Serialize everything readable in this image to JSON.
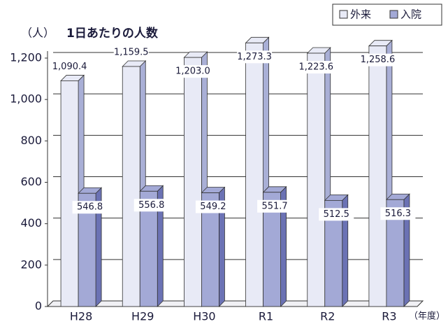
{
  "chart_data": {
    "type": "bar3d",
    "title": "1日あたりの人数",
    "y_axis_label": "（人）",
    "x_axis_label": "（年度）",
    "categories": [
      "H28",
      "H29",
      "H30",
      "R1",
      "R2",
      "R3"
    ],
    "series": [
      {
        "name": "外来",
        "color": "#e8eaf6",
        "side_color": "#a9afd6",
        "values": [
          1090.4,
          1159.5,
          1203.0,
          1273.3,
          1223.6,
          1258.6
        ],
        "value_labels": [
          "1,090.4",
          "1,159.5",
          "1,203.0",
          "1,273.3",
          "1,223.6",
          "1,258.6"
        ]
      },
      {
        "name": "入院",
        "color": "#a3a9d6",
        "side_color": "#6b72b4",
        "values": [
          546.8,
          556.8,
          549.2,
          551.7,
          512.5,
          516.3
        ]
      }
    ],
    "ylim": [
      0,
      1200
    ],
    "yticks": [
      0,
      200,
      400,
      600,
      800,
      {
        "value": 1000,
        "label": "1,000"
      },
      {
        "value": 1200,
        "label": "1,200"
      }
    ],
    "grid": true,
    "legend": "top-right"
  }
}
